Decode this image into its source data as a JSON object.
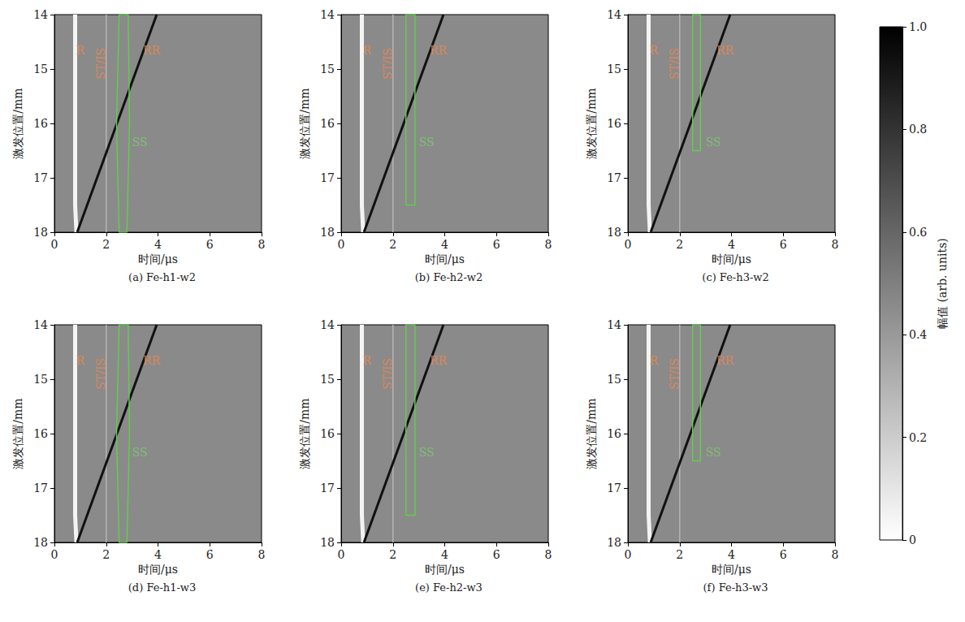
{
  "chart_data": [
    {
      "type": "line",
      "title": "(a) Fe-h1-w2",
      "xlabel": "时间/μs",
      "ylabel": "激发位置/mm",
      "xlim": [
        0,
        8
      ],
      "xticks": [
        0,
        2,
        4,
        6,
        8
      ],
      "ylim": [
        18,
        14
      ],
      "yticks": [
        14,
        15,
        16,
        17,
        18
      ],
      "series": [
        {
          "name": "R",
          "color": "#f4f4f4",
          "line_style": "thick",
          "x": [
            0.8,
            0.8,
            0.85
          ],
          "y": [
            14,
            17.5,
            18
          ]
        },
        {
          "name": "ST/IS",
          "color": "#b4b4b4",
          "line_style": "thin",
          "x": [
            2.0,
            2.0
          ],
          "y": [
            14,
            18
          ]
        },
        {
          "name": "RR",
          "color": "#111111",
          "line_style": "medium",
          "x": [
            0.88,
            3.95
          ],
          "y": [
            18,
            14
          ]
        },
        {
          "name": "SS",
          "color": "#5fcf4a",
          "line_style": "thin",
          "x": [
            2.5,
            2.85,
            2.9,
            2.8,
            2.5,
            2.4,
            2.5
          ],
          "y": [
            14,
            14,
            16,
            18,
            18,
            16,
            14
          ]
        }
      ],
      "annotations": [
        {
          "text": "R",
          "x": 1.0,
          "y": 14.65,
          "color": "#f0874a"
        },
        {
          "text": "ST/IS",
          "x": 1.8,
          "y": 14.9,
          "color": "#f0874a",
          "orientation": "vertical"
        },
        {
          "text": "RR",
          "x": 3.75,
          "y": 14.65,
          "color": "#f0874a"
        },
        {
          "text": "SS",
          "x": 3.3,
          "y": 16.35,
          "color": "#7ccf6e"
        }
      ]
    },
    {
      "type": "line",
      "title": "(b) Fe-h2-w2",
      "xlabel": "时间/μs",
      "ylabel": "激发位置/mm",
      "xlim": [
        0,
        8
      ],
      "xticks": [
        0,
        2,
        4,
        6,
        8
      ],
      "ylim": [
        18,
        14
      ],
      "yticks": [
        14,
        15,
        16,
        17,
        18
      ],
      "series": [
        {
          "name": "R",
          "color": "#f4f4f4",
          "line_style": "thick",
          "x": [
            0.8,
            0.8,
            0.85
          ],
          "y": [
            14,
            17.5,
            18
          ]
        },
        {
          "name": "ST/IS",
          "color": "#b4b4b4",
          "line_style": "thin",
          "x": [
            2.0,
            2.0
          ],
          "y": [
            14,
            18
          ]
        },
        {
          "name": "RR",
          "color": "#111111",
          "line_style": "medium",
          "x": [
            0.88,
            3.95
          ],
          "y": [
            18,
            14
          ]
        },
        {
          "name": "SS",
          "color": "#5fcf4a",
          "line_style": "thin",
          "x": [
            2.5,
            2.85,
            2.85,
            2.5,
            2.5
          ],
          "y": [
            14,
            14,
            17.5,
            17.5,
            14
          ]
        }
      ],
      "annotations": [
        {
          "text": "R",
          "x": 1.0,
          "y": 14.65,
          "color": "#f0874a"
        },
        {
          "text": "ST/IS",
          "x": 1.8,
          "y": 14.9,
          "color": "#f0874a",
          "orientation": "vertical"
        },
        {
          "text": "RR",
          "x": 3.75,
          "y": 14.65,
          "color": "#f0874a"
        },
        {
          "text": "SS",
          "x": 3.3,
          "y": 16.35,
          "color": "#7ccf6e"
        }
      ]
    },
    {
      "type": "line",
      "title": "(c) Fe-h3-w2",
      "xlabel": "时间/μs",
      "ylabel": "激发位置/mm",
      "xlim": [
        0,
        8
      ],
      "xticks": [
        0,
        2,
        4,
        6,
        8
      ],
      "ylim": [
        18,
        14
      ],
      "yticks": [
        14,
        15,
        16,
        17,
        18
      ],
      "series": [
        {
          "name": "R",
          "color": "#f4f4f4",
          "line_style": "thick",
          "x": [
            0.8,
            0.8,
            0.85
          ],
          "y": [
            14,
            17.5,
            18
          ]
        },
        {
          "name": "ST/IS",
          "color": "#b4b4b4",
          "line_style": "thin",
          "x": [
            2.0,
            2.0
          ],
          "y": [
            14,
            18
          ]
        },
        {
          "name": "RR",
          "color": "#111111",
          "line_style": "medium",
          "x": [
            0.88,
            3.95
          ],
          "y": [
            18,
            14
          ]
        },
        {
          "name": "SS",
          "color": "#5fcf4a",
          "line_style": "thin",
          "x": [
            2.5,
            2.8,
            2.8,
            2.5,
            2.5
          ],
          "y": [
            14,
            14,
            16.5,
            16.5,
            14
          ]
        }
      ],
      "annotations": [
        {
          "text": "R",
          "x": 1.0,
          "y": 14.65,
          "color": "#f0874a"
        },
        {
          "text": "ST/IS",
          "x": 1.8,
          "y": 14.9,
          "color": "#f0874a",
          "orientation": "vertical"
        },
        {
          "text": "RR",
          "x": 3.75,
          "y": 14.65,
          "color": "#f0874a"
        },
        {
          "text": "SS",
          "x": 3.3,
          "y": 16.35,
          "color": "#7ccf6e"
        }
      ]
    },
    {
      "type": "line",
      "title": "(d) Fe-h1-w3",
      "xlabel": "时间/μs",
      "ylabel": "激发位置/mm",
      "xlim": [
        0,
        8
      ],
      "xticks": [
        0,
        2,
        4,
        6,
        8
      ],
      "ylim": [
        18,
        14
      ],
      "yticks": [
        14,
        15,
        16,
        17,
        18
      ],
      "series": [
        {
          "name": "R",
          "color": "#f4f4f4",
          "line_style": "thick",
          "x": [
            0.8,
            0.8,
            0.85
          ],
          "y": [
            14,
            17.5,
            18
          ]
        },
        {
          "name": "ST/IS",
          "color": "#b4b4b4",
          "line_style": "thin",
          "x": [
            2.0,
            2.0
          ],
          "y": [
            14,
            18
          ]
        },
        {
          "name": "RR",
          "color": "#111111",
          "line_style": "medium",
          "x": [
            0.88,
            3.95
          ],
          "y": [
            18,
            14
          ]
        },
        {
          "name": "SS",
          "color": "#5fcf4a",
          "line_style": "thin",
          "x": [
            2.5,
            2.85,
            2.9,
            2.8,
            2.5,
            2.4,
            2.5
          ],
          "y": [
            14,
            14,
            16,
            18,
            18,
            16,
            14
          ]
        }
      ],
      "annotations": [
        {
          "text": "R",
          "x": 1.0,
          "y": 14.65,
          "color": "#f0874a"
        },
        {
          "text": "ST/IS",
          "x": 1.8,
          "y": 14.9,
          "color": "#f0874a",
          "orientation": "vertical"
        },
        {
          "text": "RR",
          "x": 3.75,
          "y": 14.65,
          "color": "#f0874a"
        },
        {
          "text": "SS",
          "x": 3.3,
          "y": 16.35,
          "color": "#7ccf6e"
        }
      ]
    },
    {
      "type": "line",
      "title": "(e) Fe-h2-w3",
      "xlabel": "时间/μs",
      "ylabel": "激发位置/mm",
      "xlim": [
        0,
        8
      ],
      "xticks": [
        0,
        2,
        4,
        6,
        8
      ],
      "ylim": [
        18,
        14
      ],
      "yticks": [
        14,
        15,
        16,
        17,
        18
      ],
      "series": [
        {
          "name": "R",
          "color": "#f4f4f4",
          "line_style": "thick",
          "x": [
            0.8,
            0.8,
            0.85
          ],
          "y": [
            14,
            17.5,
            18
          ]
        },
        {
          "name": "ST/IS",
          "color": "#b4b4b4",
          "line_style": "thin",
          "x": [
            2.0,
            2.0
          ],
          "y": [
            14,
            18
          ]
        },
        {
          "name": "RR",
          "color": "#111111",
          "line_style": "medium",
          "x": [
            0.88,
            3.95
          ],
          "y": [
            18,
            14
          ]
        },
        {
          "name": "SS",
          "color": "#5fcf4a",
          "line_style": "thin",
          "x": [
            2.5,
            2.85,
            2.85,
            2.5,
            2.5
          ],
          "y": [
            14,
            14,
            17.5,
            17.5,
            14
          ]
        }
      ],
      "annotations": [
        {
          "text": "R",
          "x": 1.0,
          "y": 14.65,
          "color": "#f0874a"
        },
        {
          "text": "ST/IS",
          "x": 1.8,
          "y": 14.9,
          "color": "#f0874a",
          "orientation": "vertical"
        },
        {
          "text": "RR",
          "x": 3.75,
          "y": 14.65,
          "color": "#f0874a"
        },
        {
          "text": "SS",
          "x": 3.3,
          "y": 16.35,
          "color": "#7ccf6e"
        }
      ]
    },
    {
      "type": "line",
      "title": "(f) Fe-h3-w3",
      "xlabel": "时间/μs",
      "ylabel": "激发位置/mm",
      "xlim": [
        0,
        8
      ],
      "xticks": [
        0,
        2,
        4,
        6,
        8
      ],
      "ylim": [
        18,
        14
      ],
      "yticks": [
        14,
        15,
        16,
        17,
        18
      ],
      "series": [
        {
          "name": "R",
          "color": "#f4f4f4",
          "line_style": "thick",
          "x": [
            0.8,
            0.8,
            0.85
          ],
          "y": [
            14,
            17.5,
            18
          ]
        },
        {
          "name": "ST/IS",
          "color": "#b4b4b4",
          "line_style": "thin",
          "x": [
            2.0,
            2.0
          ],
          "y": [
            14,
            18
          ]
        },
        {
          "name": "RR",
          "color": "#111111",
          "line_style": "medium",
          "x": [
            0.88,
            3.95
          ],
          "y": [
            18,
            14
          ]
        },
        {
          "name": "SS",
          "color": "#5fcf4a",
          "line_style": "thin",
          "x": [
            2.5,
            2.8,
            2.8,
            2.5,
            2.5
          ],
          "y": [
            14,
            14,
            16.5,
            16.5,
            14
          ]
        }
      ],
      "annotations": [
        {
          "text": "R",
          "x": 1.0,
          "y": 14.65,
          "color": "#f0874a"
        },
        {
          "text": "ST/IS",
          "x": 1.8,
          "y": 14.9,
          "color": "#f0874a",
          "orientation": "vertical"
        },
        {
          "text": "RR",
          "x": 3.75,
          "y": 14.65,
          "color": "#f0874a"
        },
        {
          "text": "SS",
          "x": 3.3,
          "y": 16.35,
          "color": "#7ccf6e"
        }
      ]
    },
    {
      "type": "colorbar",
      "ylabel": "幅值 (arb. units)",
      "ylim": [
        0,
        1
      ],
      "yticks": [
        0,
        0.2,
        0.4,
        0.6,
        0.8,
        {
          "value": 1,
          "label": "1.0"
        }
      ],
      "colors": [
        "#ffffff",
        "#000000"
      ]
    }
  ]
}
